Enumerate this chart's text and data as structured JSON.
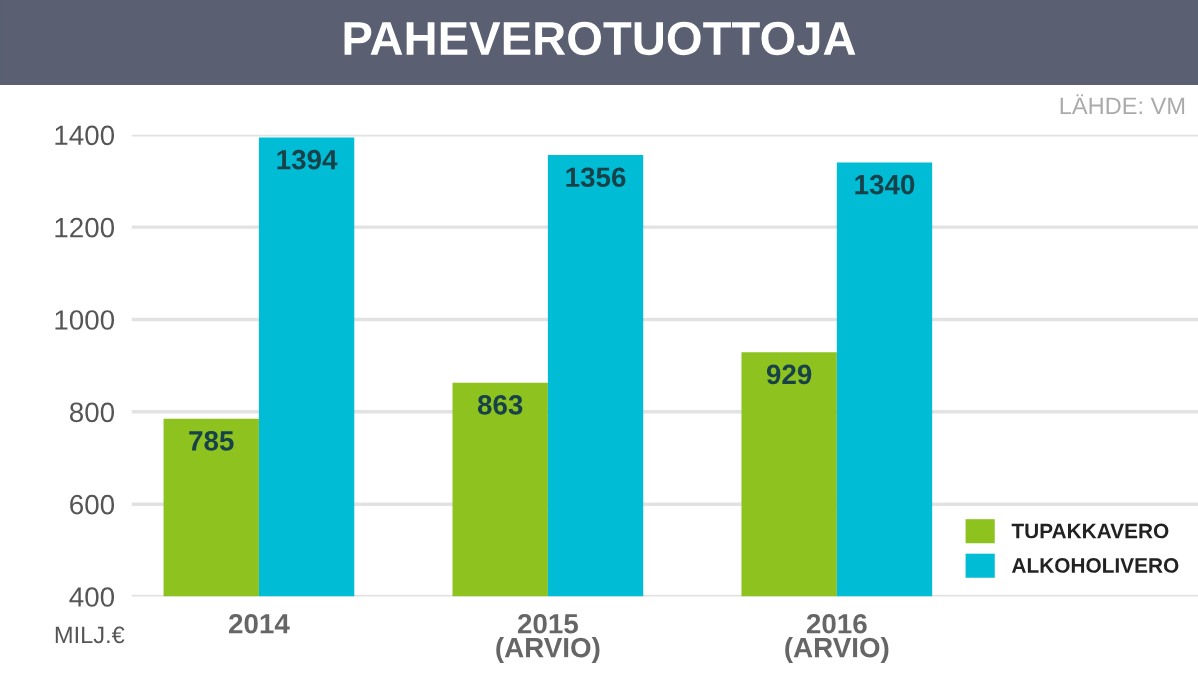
{
  "chart_data": {
    "type": "bar",
    "title": "PAHEVEROTUOTTOJA",
    "categories": [
      "2014",
      "2015\n(ARVIO)",
      "2016\n(ARVIO)"
    ],
    "series": [
      {
        "name": "TUPAKKAVERO",
        "color": "#8dc21f",
        "values": [
          785,
          863,
          929
        ]
      },
      {
        "name": "ALKOHOLIVERO",
        "color": "#00bcd4",
        "values": [
          1394,
          1356,
          1340
        ]
      }
    ],
    "ylabel": "MILJ.€",
    "annotations": [
      "LÄHDE: VM"
    ],
    "ylim": [
      400,
      1400
    ],
    "yticks": [
      400,
      600,
      800,
      1000,
      1200,
      1400
    ],
    "grid": "y",
    "legend": "bottom right",
    "data_labels": true
  }
}
